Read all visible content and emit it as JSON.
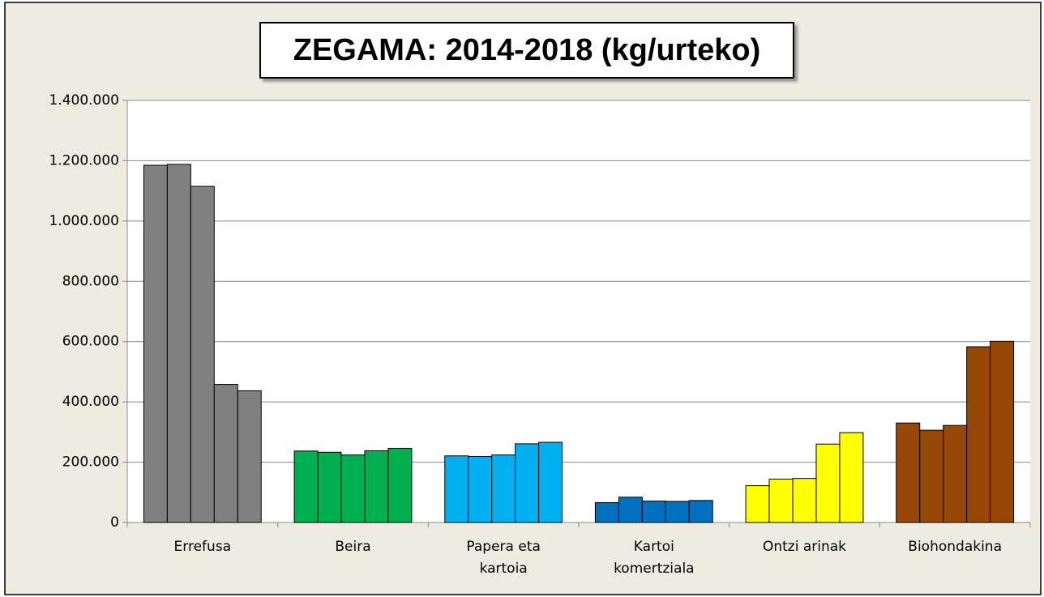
{
  "chart_data": {
    "type": "bar",
    "title": "ZEGAMA: 2014-2018 (kg/urteko)",
    "categories": [
      "Errefusa",
      "Beira",
      "Papera eta kartoia",
      "Kartoi komertziala",
      "Ontzi arinak",
      "Biohondakina"
    ],
    "colors": [
      "#808080",
      "#00b050",
      "#00b0f0",
      "#0070c0",
      "#ffff00",
      "#974706"
    ],
    "series": [
      {
        "values": [
          1185000,
          237000,
          221000,
          66000,
          122000,
          330000
        ]
      },
      {
        "values": [
          1188000,
          233000,
          219000,
          84000,
          144000,
          306000
        ]
      },
      {
        "values": [
          1115000,
          224000,
          224000,
          71000,
          146000,
          322000
        ]
      },
      {
        "values": [
          458000,
          238000,
          261000,
          70000,
          260000,
          583000
        ]
      },
      {
        "values": [
          437000,
          246000,
          266000,
          73000,
          298000,
          601000
        ]
      }
    ],
    "ylim": [
      0,
      1400000
    ],
    "yticks": [
      0,
      {
        "value": 200000,
        "label": "200.000"
      },
      {
        "value": 400000,
        "label": "400.000"
      },
      {
        "value": 600000,
        "label": "600.000"
      },
      {
        "value": 800000,
        "label": "800.000"
      },
      {
        "value": 1000000,
        "label": "1.000.000"
      },
      {
        "value": 1200000,
        "label": "1.200.000"
      },
      {
        "value": 1400000,
        "label": "1.400.000"
      }
    ],
    "grid": true
  }
}
